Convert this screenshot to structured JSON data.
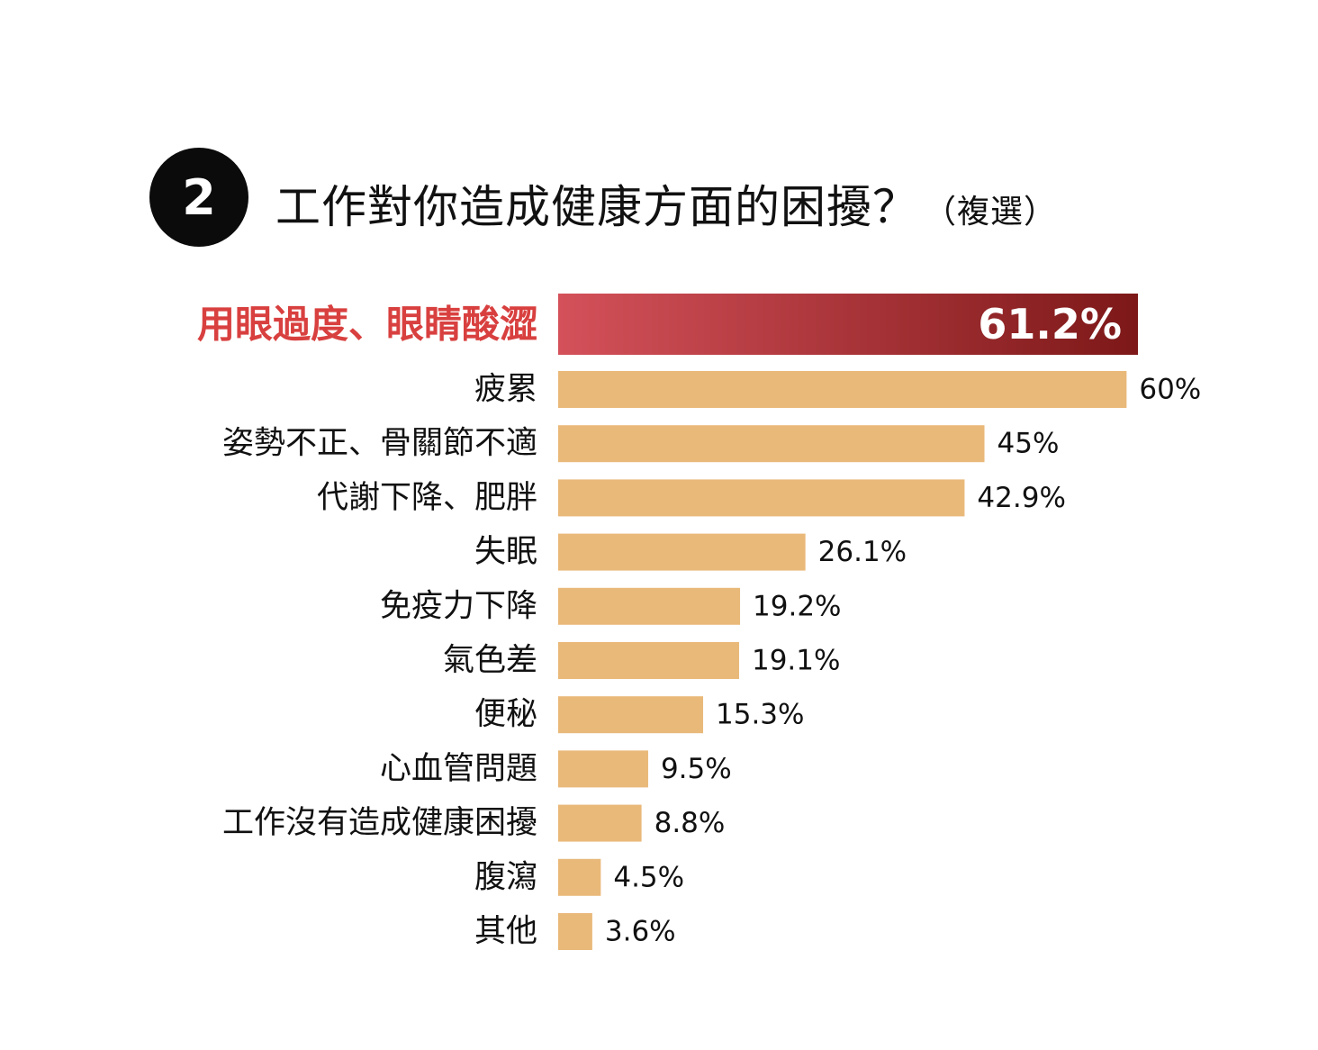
{
  "header": {
    "number": "2",
    "title": "工作對你造成健康方面的困擾？",
    "subtitle": "（複選）"
  },
  "colors": {
    "bar": "#e9b97a",
    "highlight_start": "#d4515a",
    "highlight_end": "#7d1818",
    "highlight_label": "#d8403f",
    "text": "#111111"
  },
  "chart_data": {
    "type": "bar",
    "orientation": "horizontal",
    "categories": [
      "用眼過度、眼睛酸澀",
      "疲累",
      "姿勢不正、骨關節不適",
      "代謝下降、肥胖",
      "失眠",
      "免疫力下降",
      "氣色差",
      "便秘",
      "心血管問題",
      "工作沒有造成健康困擾",
      "腹瀉",
      "其他"
    ],
    "values": [
      61.2,
      60,
      45,
      42.9,
      26.1,
      19.2,
      19.1,
      15.3,
      9.5,
      8.8,
      4.5,
      3.6
    ],
    "value_labels": [
      "61.2%",
      "60%",
      "45%",
      "42.9%",
      "26.1%",
      "19.2%",
      "19.1%",
      "15.3%",
      "9.5%",
      "8.8%",
      "4.5%",
      "3.6%"
    ],
    "highlight_index": 0,
    "unit": "%",
    "title": "工作對你造成健康方面的困擾？",
    "xlabel": "",
    "ylabel": "",
    "xlim": [
      0,
      61.2
    ],
    "grid": false,
    "legend": "none"
  }
}
